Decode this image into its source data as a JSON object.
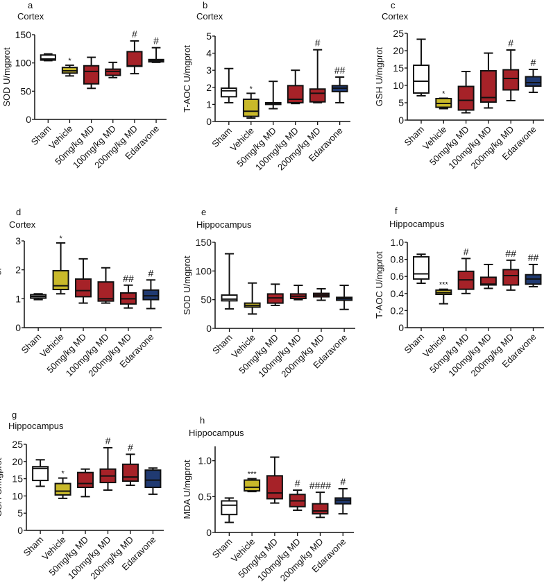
{
  "colors": {
    "sham": "#ffffff",
    "sham_gray": "#a0a0a0",
    "vehicle": "#c9b92a",
    "md": "#a62228",
    "edaravone": "#203a72",
    "stroke": "#111111"
  },
  "chart_data": [
    {
      "type": "box",
      "panel": "a",
      "title": "Cortex",
      "ylabel": "SOD U/mgprot",
      "ylim": [
        0,
        150
      ],
      "yticks": [
        "0",
        "50",
        "100",
        "150"
      ],
      "ytick_values": [
        0,
        50,
        100,
        150
      ],
      "categories": [
        "Sham",
        "Vehicle",
        "50mg/kg MD",
        "100mg/kg MD",
        "200mg/kg MD",
        "Edaravone"
      ],
      "boxes": [
        [
          104,
          105,
          107,
          114,
          116
        ],
        [
          77,
          82,
          86,
          92,
          96
        ],
        [
          55,
          63,
          85,
          95,
          110
        ],
        [
          74,
          78,
          85,
          89,
          101
        ],
        [
          81,
          94,
          95,
          120,
          139
        ],
        [
          101,
          102,
          104,
          106,
          127
        ]
      ],
      "annotations": [
        "",
        "*",
        "",
        "",
        "#",
        "#"
      ]
    },
    {
      "type": "box",
      "panel": "b",
      "title": "Cortex",
      "ylabel": "T-AOC U/mgprot",
      "ylim": [
        0,
        5
      ],
      "yticks": [
        "0",
        "1",
        "2",
        "3",
        "4",
        "5"
      ],
      "ytick_values": [
        0,
        1,
        2,
        3,
        4,
        5
      ],
      "categories": [
        "Sham",
        "Vehicle",
        "50mg/kg MD",
        "100mg/kg MD",
        "200mg/kg MD",
        "Edaravone"
      ],
      "boxes": [
        [
          1.1,
          1.45,
          1.8,
          1.95,
          3.1
        ],
        [
          0.2,
          0.3,
          0.6,
          1.3,
          1.65
        ],
        [
          0.75,
          1.0,
          1.05,
          1.1,
          2.35
        ],
        [
          1.05,
          1.1,
          1.3,
          2.1,
          3.0
        ],
        [
          1.1,
          1.15,
          1.65,
          1.9,
          4.2
        ],
        [
          1.1,
          1.75,
          1.95,
          2.1,
          2.6
        ]
      ],
      "annotations": [
        "",
        "*",
        "",
        "",
        "#",
        "##"
      ]
    },
    {
      "type": "box",
      "panel": "c",
      "title": "Cortex",
      "ylabel": "GSH U/mgprot",
      "ylim": [
        0,
        25
      ],
      "yticks": [
        "0",
        "5",
        "10",
        "15",
        "20",
        "25"
      ],
      "ytick_values": [
        0,
        5,
        10,
        15,
        20,
        25
      ],
      "categories": [
        "Sham",
        "Vehicle",
        "50mg/kg MD",
        "100mg/kg MD",
        "200mg/kg MD",
        "Edaravone"
      ],
      "boxes": [
        [
          7,
          7.8,
          11.2,
          15.8,
          23.3
        ],
        [
          3.3,
          3.7,
          4.8,
          6.2,
          6.3
        ],
        [
          2.1,
          2.9,
          5.7,
          9.7,
          14
        ],
        [
          3.5,
          5.2,
          6.5,
          14.2,
          19.3
        ],
        [
          5.6,
          8.7,
          12,
          14.5,
          20.2
        ],
        [
          8,
          9.8,
          10.8,
          12.5,
          14.6
        ]
      ],
      "annotations": [
        "",
        "*",
        "",
        "",
        "#",
        "#"
      ]
    },
    {
      "type": "box",
      "panel": "d",
      "title": "Cortex",
      "ylabel": "MDA U/mgprot",
      "ylim": [
        0,
        3
      ],
      "yticks": [
        "0",
        "1",
        "2",
        "3"
      ],
      "ytick_values": [
        0,
        1,
        2,
        3
      ],
      "categories": [
        "Sham",
        "Vehicle",
        "50mg/kg MD",
        "100mg/kg MD",
        "200mg/kg MD",
        "Edaravone"
      ],
      "boxes": [
        [
          0.97,
          1.02,
          1.08,
          1.14,
          1.17
        ],
        [
          1.17,
          1.32,
          1.45,
          1.97,
          2.93
        ],
        [
          0.85,
          1.07,
          1.28,
          1.68,
          2.38
        ],
        [
          0.85,
          0.92,
          1.0,
          1.58,
          2.07
        ],
        [
          0.68,
          0.82,
          1.0,
          1.2,
          1.47
        ],
        [
          0.66,
          0.97,
          1.1,
          1.3,
          1.65
        ]
      ],
      "annotations": [
        "",
        "*",
        "",
        "",
        "##",
        "#"
      ]
    },
    {
      "type": "box",
      "panel": "e",
      "title": "Hippocampus",
      "ylabel": "SOD U/mgprot",
      "ylim": [
        0,
        150
      ],
      "yticks": [
        "0",
        "50",
        "100",
        "150"
      ],
      "ytick_values": [
        0,
        50,
        100,
        150
      ],
      "categories": [
        "Sham",
        "Vehicle",
        "50mg/kg MD",
        "100mg/kg MD",
        "200mg/kg MD",
        "Edaravone"
      ],
      "boxes": [
        [
          34,
          48,
          51,
          58,
          130
        ],
        [
          25,
          37,
          40,
          44,
          79
        ],
        [
          40,
          44,
          53,
          60,
          77
        ],
        [
          50,
          52,
          56,
          60,
          75
        ],
        [
          49,
          55,
          58,
          61,
          69
        ],
        [
          33,
          49,
          52,
          54,
          75
        ]
      ],
      "annotations": [
        "",
        "",
        "",
        "",
        "",
        ""
      ]
    },
    {
      "type": "box",
      "panel": "f",
      "title": "Hippocampus",
      "ylabel": "T-AOC U/mgprot",
      "ylim": [
        0,
        1
      ],
      "yticks": [
        "0",
        "0.2",
        "0.4",
        "0.6",
        "0.8",
        "1.0"
      ],
      "ytick_values": [
        0,
        0.2,
        0.4,
        0.6,
        0.8,
        1.0
      ],
      "categories": [
        "Sham",
        "Vehicle",
        "50mg/kg MD",
        "100mg/kg MD",
        "200mg/kg MD",
        "Edaravone"
      ],
      "boxes": [
        [
          0.52,
          0.57,
          0.63,
          0.83,
          0.86
        ],
        [
          0.28,
          0.39,
          0.41,
          0.44,
          0.45
        ],
        [
          0.4,
          0.45,
          0.56,
          0.66,
          0.81
        ],
        [
          0.46,
          0.5,
          0.51,
          0.59,
          0.74
        ],
        [
          0.44,
          0.5,
          0.61,
          0.68,
          0.79
        ],
        [
          0.48,
          0.51,
          0.57,
          0.62,
          0.74
        ]
      ],
      "annotations": [
        "",
        "***",
        "#",
        "",
        "##",
        "##"
      ]
    },
    {
      "type": "box",
      "panel": "g",
      "title": "Hippocampus",
      "ylabel": "GSH U/mgprot",
      "ylim": [
        0,
        25
      ],
      "yticks": [
        "0",
        "5",
        "10",
        "15",
        "20",
        "25"
      ],
      "ytick_values": [
        0,
        5,
        10,
        15,
        20,
        25
      ],
      "categories": [
        "Sham",
        "Vehicle",
        "50mg/kg MD",
        "100mg/kg MD",
        "200mg/kg MD",
        "Edaravone"
      ],
      "boxes": [
        [
          12.8,
          14.5,
          18,
          18.5,
          20.5
        ],
        [
          9.3,
          10.3,
          11.4,
          13.6,
          15.2
        ],
        [
          9.8,
          12.5,
          13.6,
          16.8,
          17.8
        ],
        [
          11.7,
          13.9,
          15.8,
          17.8,
          24
        ],
        [
          13.1,
          14.3,
          15.5,
          19.2,
          22.1
        ],
        [
          10.5,
          12.5,
          14.6,
          17.5,
          18.1
        ]
      ],
      "annotations": [
        "",
        "*",
        "",
        "#",
        "#",
        ""
      ]
    },
    {
      "type": "box",
      "panel": "h",
      "title": "Hippocampus",
      "ylabel": "MDA U/mgprot",
      "ylim": [
        0,
        1.2
      ],
      "yticks": [
        "0",
        "0.5",
        "1.0"
      ],
      "ytick_values": [
        0,
        0.5,
        1.0
      ],
      "categories": [
        "Sham",
        "Vehicle",
        "50mg/kg MD",
        "100mg/kg MD",
        "200mg/kg MD",
        "Edaravone"
      ],
      "boxes": [
        [
          0.14,
          0.25,
          0.38,
          0.44,
          0.48
        ],
        [
          0.57,
          0.58,
          0.63,
          0.73,
          0.75
        ],
        [
          0.41,
          0.47,
          0.55,
          0.79,
          1.05
        ],
        [
          0.31,
          0.36,
          0.44,
          0.53,
          0.59
        ],
        [
          0.21,
          0.26,
          0.3,
          0.4,
          0.56
        ],
        [
          0.26,
          0.4,
          0.45,
          0.48,
          0.61
        ]
      ],
      "annotations": [
        "",
        "***",
        "",
        "#",
        "####",
        "#"
      ]
    }
  ]
}
